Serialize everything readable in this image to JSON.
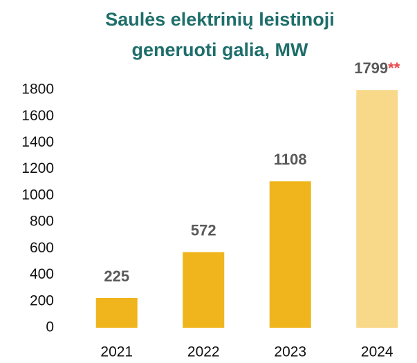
{
  "chart_data": {
    "type": "bar",
    "title": [
      "Saulės elektrinių leistinoji",
      "generuoti galia, MW"
    ],
    "categories": [
      "2021",
      "2022",
      "2023",
      "2024"
    ],
    "values": [
      225,
      572,
      1108,
      1799
    ],
    "colors": [
      "#f0b51d",
      "#f0b51d",
      "#f0b51d",
      "#f8d98a"
    ],
    "annotations": [
      {
        "category": "2024",
        "text": "**",
        "color": "#e8474c"
      }
    ],
    "ylim": [
      0,
      1800
    ],
    "yticks": [
      0,
      200,
      400,
      600,
      800,
      1000,
      1200,
      1400,
      1600,
      1800
    ],
    "grid": false
  }
}
